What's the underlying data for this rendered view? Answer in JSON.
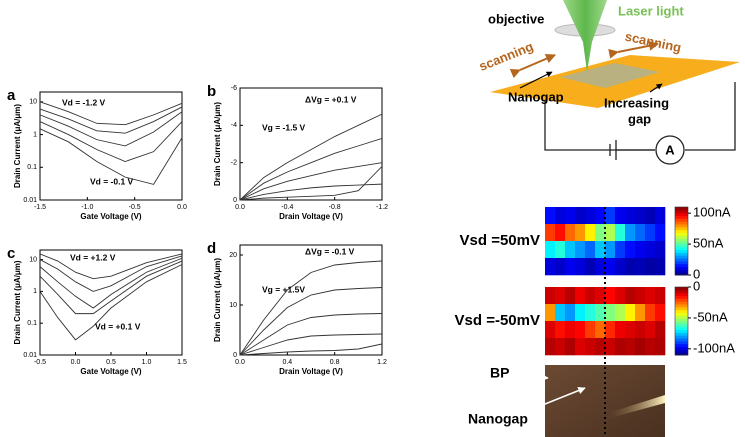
{
  "chart_data": [
    {
      "type": "line",
      "panel": "a",
      "x_label": "Gate Voltage (V)",
      "y_label": "Drain Current (μA/μm)",
      "log_y": true,
      "x": [
        -1.5,
        -1.2,
        -0.9,
        -0.6,
        -0.3,
        0
      ],
      "xlim": [
        -1.5,
        0
      ],
      "ylim": [
        0.01,
        20
      ],
      "xticks": [
        -1.5,
        {
          "value": -1,
          "label": "-1.0"
        },
        -0.5,
        {
          "value": 0,
          "label": "0.0"
        }
      ],
      "yticks": [
        0.01,
        0.1,
        1,
        10
      ],
      "annotations": [
        "Vd = -1.2 V",
        "Vd = -0.1 V"
      ],
      "color": "#333333",
      "series": [
        {
          "values": [
            10,
            5,
            2.2,
            2,
            4,
            9
          ]
        },
        {
          "values": [
            6,
            3,
            1.3,
            1.1,
            2.5,
            7
          ]
        },
        {
          "values": [
            4,
            1.8,
            0.7,
            0.45,
            1.2,
            5
          ]
        },
        {
          "values": [
            2.5,
            1,
            0.35,
            0.15,
            0.3,
            2.5
          ]
        },
        {
          "values": [
            1.5,
            0.6,
            0.15,
            0.05,
            0.03,
            0.8
          ]
        }
      ]
    },
    {
      "type": "line",
      "panel": "b",
      "x_label": "Drain Voltage (V)",
      "y_label": "Drain Current (μA/μm)",
      "log_y": false,
      "x": [
        0,
        -0.2,
        -0.4,
        -0.6,
        -0.8,
        -1,
        -1.2
      ],
      "xlim": [
        0,
        -1.2
      ],
      "ylim": [
        0,
        -6
      ],
      "xticks": [
        {
          "value": 0,
          "label": "0.0"
        },
        -0.4,
        -0.8,
        -1.2
      ],
      "yticks": [
        0,
        -2,
        -4,
        -6
      ],
      "annotations": [
        "ΔVg = +0.1 V",
        "Vg = -1.5 V"
      ],
      "color": "#333333",
      "series": [
        {
          "values": [
            0,
            -1.2,
            -2,
            -2.7,
            -3.4,
            -4,
            -4.6
          ]
        },
        {
          "values": [
            0,
            -0.9,
            -1.5,
            -2,
            -2.5,
            -2.9,
            -3.3
          ]
        },
        {
          "values": [
            0,
            -0.6,
            -1,
            -1.3,
            -1.6,
            -1.8,
            -2
          ]
        },
        {
          "values": [
            0,
            -0.3,
            -0.5,
            -0.65,
            -0.75,
            -0.8,
            -0.85
          ]
        },
        {
          "values": [
            0,
            -0.1,
            -0.15,
            -0.2,
            -0.25,
            -0.5,
            -1.8
          ]
        }
      ]
    },
    {
      "type": "line",
      "panel": "c",
      "x_label": "Gate Voltage (V)",
      "y_label": "Drain Current (μA/μm)",
      "log_y": true,
      "x": [
        -0.5,
        -0.25,
        0,
        0.25,
        0.5,
        1,
        1.5
      ],
      "xlim": [
        -0.5,
        1.5
      ],
      "ylim": [
        0.01,
        20
      ],
      "xticks": [
        -0.5,
        {
          "value": 0,
          "label": "0.0"
        },
        0.5,
        {
          "value": 1,
          "label": "1.0"
        },
        1.5
      ],
      "yticks": [
        0.01,
        0.1,
        1,
        10
      ],
      "annotations": [
        "Vd = +1.2 V",
        "Vd = +0.1 V"
      ],
      "color": "#333333",
      "series": [
        {
          "values": [
            15,
            9,
            4,
            2.5,
            3,
            8,
            15
          ]
        },
        {
          "values": [
            10,
            5,
            2,
            1,
            1.5,
            6,
            13
          ]
        },
        {
          "values": [
            6,
            2,
            0.7,
            0.3,
            0.8,
            4,
            11
          ]
        },
        {
          "values": [
            3,
            0.8,
            0.2,
            0.2,
            0.5,
            3,
            9
          ]
        },
        {
          "values": [
            1,
            0.15,
            0.03,
            0.08,
            0.3,
            2,
            7
          ]
        }
      ]
    },
    {
      "type": "line",
      "panel": "d",
      "x_label": "Drain Voltage (V)",
      "y_label": "Drain Current (μA/μm)",
      "log_y": false,
      "x": [
        0,
        0.2,
        0.4,
        0.6,
        0.8,
        1,
        1.2
      ],
      "xlim": [
        0,
        1.2
      ],
      "ylim": [
        0,
        22
      ],
      "xticks": [
        {
          "value": 0,
          "label": "0.0"
        },
        0.4,
        0.8,
        1.2
      ],
      "yticks": [
        0,
        10,
        20
      ],
      "annotations": [
        "ΔVg = -0.1 V",
        "Vg = +1.5V"
      ],
      "color": "#333333",
      "series": [
        {
          "values": [
            0,
            7,
            13,
            16.5,
            18,
            18.5,
            18.8
          ]
        },
        {
          "values": [
            0,
            5,
            9.5,
            12,
            13,
            13.3,
            13.5
          ]
        },
        {
          "values": [
            0,
            3,
            6,
            7.5,
            8,
            8.2,
            8.3
          ]
        },
        {
          "values": [
            0,
            1.5,
            3,
            3.8,
            4,
            4.1,
            4.2
          ]
        },
        {
          "values": [
            0,
            0.3,
            0.6,
            0.8,
            0.9,
            1.2,
            2.2
          ]
        }
      ]
    },
    {
      "type": "heatmap",
      "label": "Vsd =50mV",
      "zlim": [
        0,
        110
      ],
      "colorbar_ticks": [
        {
          "value": 100,
          "label": "100nA"
        },
        {
          "value": 50,
          "label": "50nA"
        },
        0
      ],
      "z": [
        [
          15,
          10,
          12,
          8,
          10,
          14,
          20,
          12,
          10,
          8,
          6,
          10
        ],
        [
          90,
          95,
          85,
          80,
          70,
          55,
          60,
          45,
          30,
          25,
          20,
          15
        ],
        [
          40,
          45,
          35,
          30,
          25,
          35,
          30,
          20,
          15,
          12,
          10,
          8
        ],
        [
          10,
          8,
          12,
          10,
          6,
          10,
          12,
          8,
          5,
          6,
          4,
          5
        ]
      ]
    },
    {
      "type": "heatmap",
      "label": "Vsd =-50mV",
      "zlim": [
        -110,
        0
      ],
      "colorbar_ticks": [
        0,
        {
          "value": -50,
          "label": "-50nA"
        },
        {
          "value": -100,
          "label": "-100nA"
        }
      ],
      "z": [
        [
          -8,
          -10,
          -6,
          -12,
          -8,
          -10,
          -14,
          -10,
          -6,
          -8,
          -10,
          -8
        ],
        [
          -30,
          -75,
          -80,
          -70,
          -65,
          -60,
          -55,
          -50,
          -40,
          -30,
          -20,
          -15
        ],
        [
          -10,
          -15,
          -12,
          -14,
          -20,
          -25,
          -18,
          -12,
          -10,
          -8,
          -10,
          -6
        ],
        [
          -6,
          -8,
          -5,
          -10,
          -8,
          -6,
          -8,
          -5,
          -6,
          -4,
          -6,
          -5
        ]
      ]
    }
  ],
  "schematic": {
    "objective": "objective",
    "laser": "Laser light",
    "scan_left": "scanning",
    "scan_right": "scanning",
    "nanogap": "Nanogap",
    "increasing": "Increasing",
    "gap": "gap",
    "meter": "A"
  },
  "photo": {
    "bp": "BP",
    "nanogap": "Nanogap"
  }
}
